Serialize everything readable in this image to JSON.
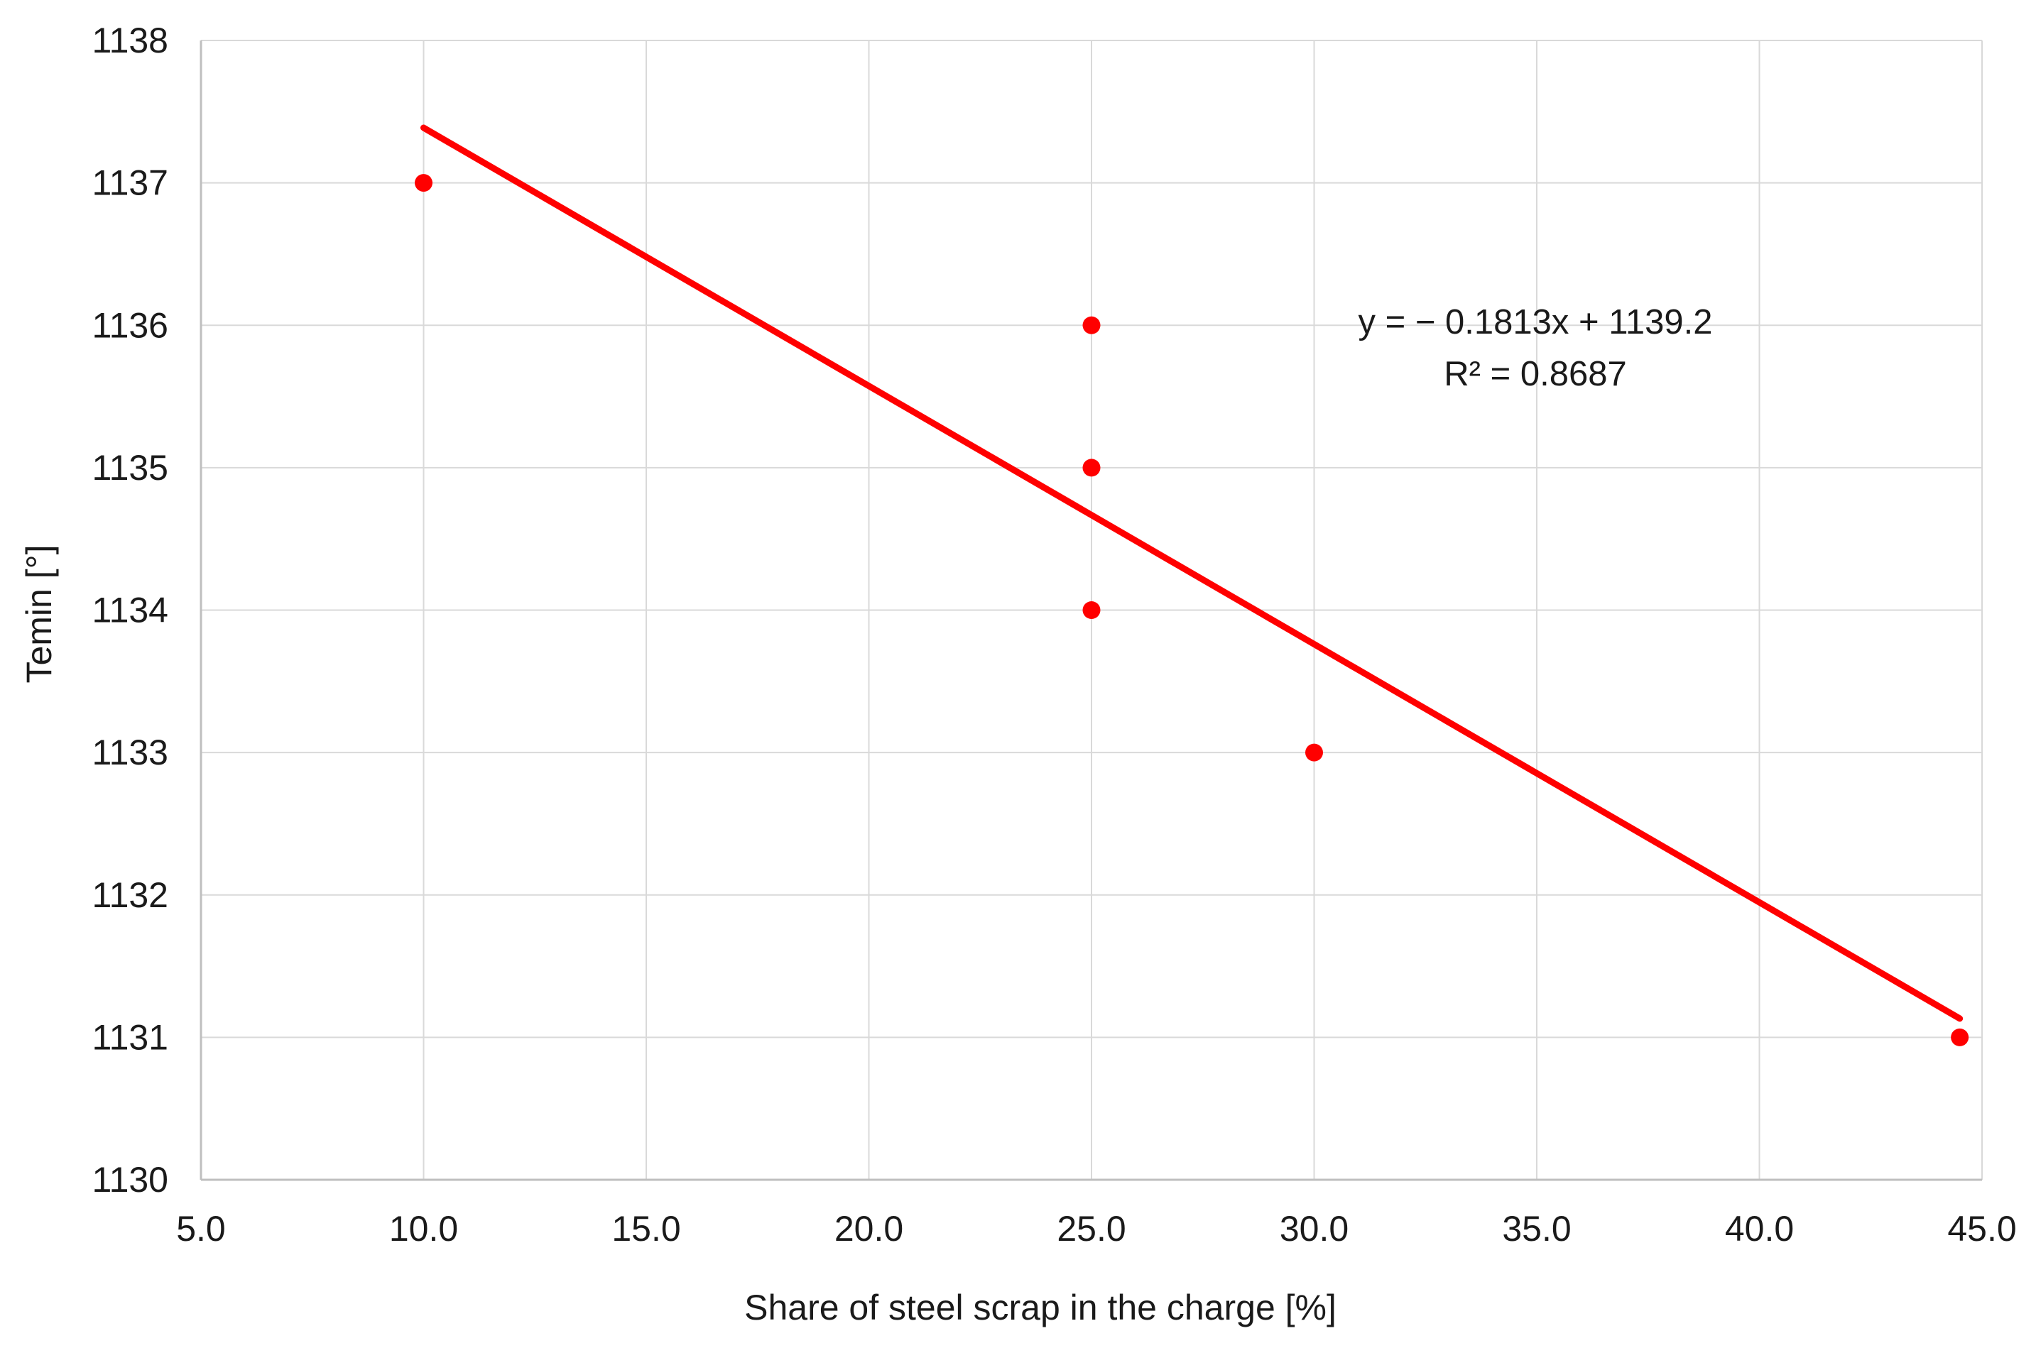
{
  "chart_data": {
    "type": "scatter",
    "title": "",
    "xlabel": "Share of steel scrap in the charge [%]",
    "ylabel": "Temin [°]",
    "xlim": [
      5.0,
      45.0
    ],
    "ylim": [
      1130,
      1138
    ],
    "grid": true,
    "legend": false,
    "x_tick_values": [
      5,
      10,
      15,
      20,
      25,
      30,
      35,
      40,
      45
    ],
    "x_tick_labels": [
      "5.0",
      "10.0",
      "15.0",
      "20.0",
      "25.0",
      "30.0",
      "35.0",
      "40.0",
      "45.0"
    ],
    "y_tick_values": [
      1130,
      1131,
      1132,
      1133,
      1134,
      1135,
      1136,
      1137,
      1138
    ],
    "y_tick_labels": [
      "1130",
      "1131",
      "1132",
      "1133",
      "1134",
      "1135",
      "1136",
      "1137",
      "1138"
    ],
    "series": [
      {
        "name": "Temin",
        "color": "#FF0000",
        "points": [
          {
            "x": 10,
            "y": 1137
          },
          {
            "x": 25,
            "y": 1136
          },
          {
            "x": 25,
            "y": 1135
          },
          {
            "x": 25,
            "y": 1134
          },
          {
            "x": 30,
            "y": 1133
          },
          {
            "x": 44.5,
            "y": 1131
          }
        ]
      }
    ],
    "trendline": {
      "slope": -0.1813,
      "intercept": 1139.2,
      "x_start": 10,
      "x_end": 44.5,
      "color": "#FF0000"
    },
    "annotation": {
      "equation": "y = − 0.1813x + 1139.2",
      "r_squared": "R² = 0.8687"
    },
    "colors": {
      "points": "#FF0000",
      "trendline": "#FF0000",
      "gridline": "#D9D9D9",
      "axis_line": "#BFBFBF",
      "text": "#1a1a1a",
      "background": "#FFFFFF"
    }
  }
}
